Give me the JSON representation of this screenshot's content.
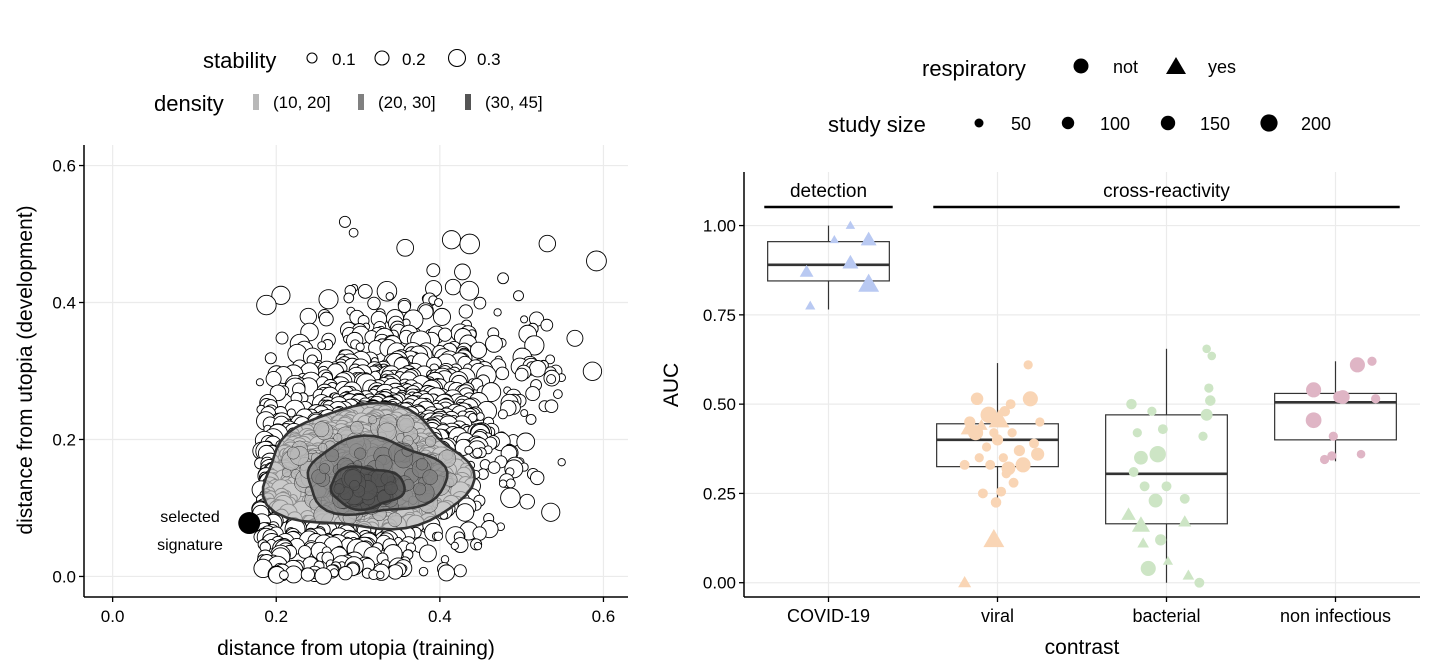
{
  "chart_data": [
    {
      "type": "scatter",
      "panel": "left",
      "xlabel": "distance from utopia (training)",
      "ylabel": "distance from utopia (development)",
      "xlim": [
        -0.035,
        0.63
      ],
      "ylim": [
        -0.03,
        0.63
      ],
      "x_ticks": [
        0.0,
        0.2,
        0.4,
        0.6
      ],
      "x_tick_labels": [
        "0.0",
        "0.2",
        "0.4",
        "0.6"
      ],
      "y_ticks": [
        0.0,
        0.2,
        0.4,
        0.6
      ],
      "y_tick_labels": [
        "0.0",
        "0.2",
        "0.4",
        "0.6"
      ],
      "grid": true,
      "legend_position": "top",
      "legend": {
        "stability": {
          "title": "stability",
          "values": [
            0.1,
            0.2,
            0.3
          ],
          "labels": [
            "0.1",
            "0.2",
            "0.3"
          ]
        },
        "density": {
          "title": "density",
          "labels": [
            "(10, 20]",
            "(20, 30]",
            "(30, 45]"
          ],
          "colors": [
            "#b8b8b8",
            "#808080",
            "#555555"
          ]
        }
      },
      "highlight": {
        "x": 0.167,
        "y": 0.078,
        "label_lines": [
          "selected",
          "signature"
        ]
      },
      "cloud": {
        "n_points": 1900,
        "center": [
          0.32,
          0.18
        ],
        "x_range": [
          0.16,
          0.6
        ],
        "y_range": [
          0.0,
          0.6
        ]
      },
      "density_contours": [
        {
          "level": "(10, 20]",
          "center": [
            0.31,
            0.155
          ],
          "rx": 0.125,
          "ry": 0.09
        },
        {
          "level": "(20, 30]",
          "center": [
            0.32,
            0.145
          ],
          "rx": 0.085,
          "ry": 0.055
        },
        {
          "level": "(30, 45]",
          "center": [
            0.31,
            0.13
          ],
          "rx": 0.045,
          "ry": 0.03
        }
      ]
    },
    {
      "type": "box",
      "panel": "right",
      "xlabel": "contrast",
      "ylabel": "AUC",
      "categories": [
        "COVID-19",
        "viral",
        "bacterial",
        "non infectious"
      ],
      "ylim": [
        -0.04,
        1.15
      ],
      "y_ticks": [
        0.0,
        0.25,
        0.5,
        0.75,
        1.0
      ],
      "y_tick_labels": [
        "0.00",
        "0.25",
        "0.50",
        "0.75",
        "1.00"
      ],
      "grid": true,
      "legend_position": "top",
      "legend": {
        "respiratory": {
          "title": "respiratory",
          "labels": [
            "not",
            "yes"
          ],
          "shapes": [
            "circle",
            "triangle"
          ]
        },
        "study_size": {
          "title": "study size",
          "values": [
            50,
            100,
            150,
            200
          ],
          "labels": [
            "50",
            "100",
            "150",
            "200"
          ]
        }
      },
      "colors": {
        "COVID-19": "#b9c9f2",
        "viral": "#f9d5b5",
        "bacterial": "#cde5c5",
        "non infectious": "#dfb5c5"
      },
      "groups": [
        {
          "label": "detection",
          "categories": [
            "COVID-19"
          ]
        },
        {
          "label": "cross-reactivity",
          "categories": [
            "viral",
            "bacterial",
            "non infectious"
          ]
        }
      ],
      "boxes": [
        {
          "category": "COVID-19",
          "whisker_low": 0.765,
          "q1": 0.845,
          "median": 0.89,
          "q3": 0.955,
          "whisker_high": 1.0
        },
        {
          "category": "viral",
          "whisker_low": 0.22,
          "q1": 0.325,
          "median": 0.4,
          "q3": 0.445,
          "whisker_high": 0.615
        },
        {
          "category": "bacterial",
          "whisker_low": 0.0,
          "q1": 0.165,
          "median": 0.305,
          "q3": 0.47,
          "whisker_high": 0.655
        },
        {
          "category": "non infectious",
          "whisker_low": 0.34,
          "q1": 0.4,
          "median": 0.505,
          "q3": 0.53,
          "whisker_high": 0.62
        }
      ],
      "points": {
        "COVID-19": [
          {
            "dx": -0.3,
            "y": 0.87,
            "size": 100,
            "respiratory": "yes"
          },
          {
            "dx": -0.25,
            "y": 0.775,
            "size": 50,
            "respiratory": "yes"
          },
          {
            "dx": 0.08,
            "y": 0.96,
            "size": 40,
            "respiratory": "yes"
          },
          {
            "dx": 0.3,
            "y": 1.0,
            "size": 40,
            "respiratory": "yes"
          },
          {
            "dx": 0.3,
            "y": 0.895,
            "size": 130,
            "respiratory": "yes"
          },
          {
            "dx": 0.55,
            "y": 0.96,
            "size": 130,
            "respiratory": "yes"
          },
          {
            "dx": 0.55,
            "y": 0.835,
            "size": 200,
            "respiratory": "yes"
          }
        ],
        "viral": [
          {
            "dx": -0.45,
            "y": 0.33,
            "size": 60,
            "respiratory": "not"
          },
          {
            "dx": -0.4,
            "y": 0.43,
            "size": 120,
            "respiratory": "yes"
          },
          {
            "dx": -0.38,
            "y": 0.45,
            "size": 80,
            "respiratory": "not"
          },
          {
            "dx": -0.3,
            "y": 0.42,
            "size": 140,
            "respiratory": "not"
          },
          {
            "dx": -0.28,
            "y": 0.515,
            "size": 100,
            "respiratory": "not"
          },
          {
            "dx": -0.25,
            "y": 0.35,
            "size": 50,
            "respiratory": "not"
          },
          {
            "dx": -0.22,
            "y": 0.44,
            "size": 80,
            "respiratory": "yes"
          },
          {
            "dx": -0.2,
            "y": 0.25,
            "size": 60,
            "respiratory": "not"
          },
          {
            "dx": -0.15,
            "y": 0.38,
            "size": 50,
            "respiratory": "not"
          },
          {
            "dx": -0.12,
            "y": 0.47,
            "size": 160,
            "respiratory": "not"
          },
          {
            "dx": -0.1,
            "y": 0.33,
            "size": 60,
            "respiratory": "not"
          },
          {
            "dx": -0.05,
            "y": 0.42,
            "size": 50,
            "respiratory": "not"
          },
          {
            "dx": -0.02,
            "y": 0.225,
            "size": 70,
            "respiratory": "not"
          },
          {
            "dx": 0.0,
            "y": 0.4,
            "size": 80,
            "respiratory": "not"
          },
          {
            "dx": 0.02,
            "y": 0.455,
            "size": 200,
            "respiratory": "yes"
          },
          {
            "dx": 0.05,
            "y": 0.255,
            "size": 60,
            "respiratory": "not"
          },
          {
            "dx": 0.08,
            "y": 0.35,
            "size": 50,
            "respiratory": "not"
          },
          {
            "dx": 0.1,
            "y": 0.48,
            "size": 70,
            "respiratory": "not"
          },
          {
            "dx": 0.12,
            "y": 0.305,
            "size": 50,
            "respiratory": "not"
          },
          {
            "dx": 0.15,
            "y": 0.32,
            "size": 120,
            "respiratory": "not"
          },
          {
            "dx": 0.18,
            "y": 0.5,
            "size": 60,
            "respiratory": "not"
          },
          {
            "dx": 0.2,
            "y": 0.42,
            "size": 50,
            "respiratory": "not"
          },
          {
            "dx": 0.22,
            "y": 0.28,
            "size": 60,
            "respiratory": "not"
          },
          {
            "dx": 0.3,
            "y": 0.37,
            "size": 80,
            "respiratory": "not"
          },
          {
            "dx": 0.35,
            "y": 0.33,
            "size": 140,
            "respiratory": "not"
          },
          {
            "dx": 0.42,
            "y": 0.61,
            "size": 50,
            "respiratory": "not"
          },
          {
            "dx": 0.45,
            "y": 0.515,
            "size": 140,
            "respiratory": "not"
          },
          {
            "dx": 0.5,
            "y": 0.39,
            "size": 60,
            "respiratory": "not"
          },
          {
            "dx": 0.55,
            "y": 0.36,
            "size": 110,
            "respiratory": "not"
          },
          {
            "dx": 0.58,
            "y": 0.45,
            "size": 50,
            "respiratory": "not"
          },
          {
            "dx": -0.05,
            "y": 0.12,
            "size": 200,
            "respiratory": "yes"
          },
          {
            "dx": -0.45,
            "y": 0.0,
            "size": 90,
            "respiratory": "yes"
          }
        ],
        "bacterial": [
          {
            "dx": -0.52,
            "y": 0.19,
            "size": 110,
            "respiratory": "yes"
          },
          {
            "dx": -0.48,
            "y": 0.5,
            "size": 70,
            "respiratory": "not"
          },
          {
            "dx": -0.45,
            "y": 0.31,
            "size": 60,
            "respiratory": "not"
          },
          {
            "dx": -0.4,
            "y": 0.42,
            "size": 50,
            "respiratory": "not"
          },
          {
            "dx": -0.35,
            "y": 0.35,
            "size": 120,
            "respiratory": "not"
          },
          {
            "dx": -0.35,
            "y": 0.16,
            "size": 160,
            "respiratory": "yes"
          },
          {
            "dx": -0.3,
            "y": 0.27,
            "size": 60,
            "respiratory": "not"
          },
          {
            "dx": -0.32,
            "y": 0.11,
            "size": 70,
            "respiratory": "yes"
          },
          {
            "dx": -0.25,
            "y": 0.04,
            "size": 140,
            "respiratory": "not"
          },
          {
            "dx": -0.2,
            "y": 0.48,
            "size": 50,
            "respiratory": "not"
          },
          {
            "dx": -0.15,
            "y": 0.23,
            "size": 120,
            "respiratory": "not"
          },
          {
            "dx": -0.12,
            "y": 0.36,
            "size": 160,
            "respiratory": "not"
          },
          {
            "dx": -0.08,
            "y": 0.12,
            "size": 80,
            "respiratory": "not"
          },
          {
            "dx": -0.05,
            "y": 0.43,
            "size": 60,
            "respiratory": "not"
          },
          {
            "dx": 0.0,
            "y": 0.27,
            "size": 60,
            "respiratory": "not"
          },
          {
            "dx": 0.02,
            "y": 0.06,
            "size": 50,
            "respiratory": "yes"
          },
          {
            "dx": 0.25,
            "y": 0.235,
            "size": 60,
            "respiratory": "not"
          },
          {
            "dx": 0.25,
            "y": 0.17,
            "size": 90,
            "respiratory": "yes"
          },
          {
            "dx": 0.3,
            "y": 0.02,
            "size": 70,
            "respiratory": "yes"
          },
          {
            "dx": 0.45,
            "y": 0.0,
            "size": 60,
            "respiratory": "not"
          },
          {
            "dx": 0.5,
            "y": 0.41,
            "size": 50,
            "respiratory": "not"
          },
          {
            "dx": 0.55,
            "y": 0.47,
            "size": 90,
            "respiratory": "not"
          },
          {
            "dx": 0.58,
            "y": 0.545,
            "size": 50,
            "respiratory": "not"
          },
          {
            "dx": 0.55,
            "y": 0.655,
            "size": 40,
            "respiratory": "not"
          },
          {
            "dx": 0.62,
            "y": 0.635,
            "size": 40,
            "respiratory": "not"
          },
          {
            "dx": 0.6,
            "y": 0.51,
            "size": 70,
            "respiratory": "not"
          }
        ],
        "non infectious": [
          {
            "dx": -0.3,
            "y": 0.54,
            "size": 140,
            "respiratory": "not"
          },
          {
            "dx": -0.3,
            "y": 0.455,
            "size": 150,
            "respiratory": "not"
          },
          {
            "dx": -0.15,
            "y": 0.345,
            "size": 50,
            "respiratory": "not"
          },
          {
            "dx": -0.05,
            "y": 0.355,
            "size": 50,
            "respiratory": "not"
          },
          {
            "dx": -0.03,
            "y": 0.41,
            "size": 50,
            "respiratory": "not"
          },
          {
            "dx": 0.05,
            "y": 0.52,
            "size": 90,
            "respiratory": "not"
          },
          {
            "dx": 0.1,
            "y": 0.52,
            "size": 120,
            "respiratory": "not"
          },
          {
            "dx": 0.3,
            "y": 0.61,
            "size": 140,
            "respiratory": "not"
          },
          {
            "dx": 0.35,
            "y": 0.36,
            "size": 40,
            "respiratory": "not"
          },
          {
            "dx": 0.5,
            "y": 0.62,
            "size": 50,
            "respiratory": "not"
          },
          {
            "dx": 0.55,
            "y": 0.515,
            "size": 50,
            "respiratory": "not"
          }
        ]
      }
    }
  ]
}
